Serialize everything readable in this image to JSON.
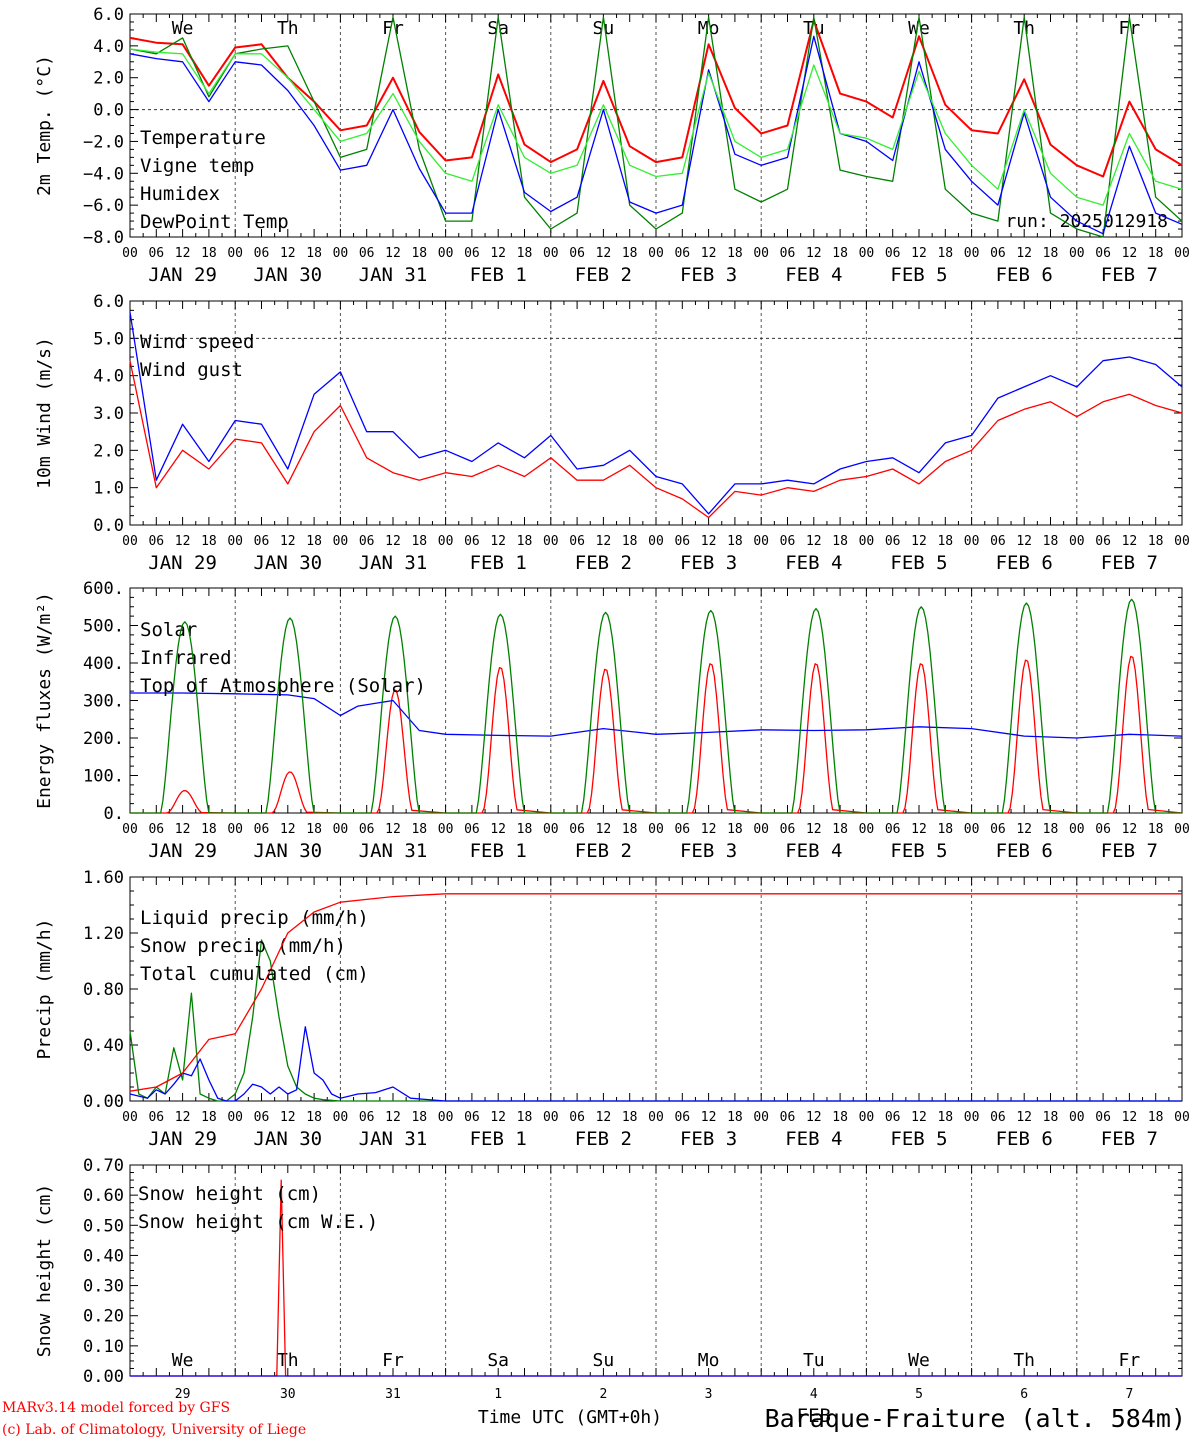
{
  "days": [
    "JAN 29",
    "JAN 30",
    "JAN 31",
    "FEB  1",
    "FEB  2",
    "FEB  3",
    "FEB  4",
    "FEB  5",
    "FEB  6",
    "FEB  7"
  ],
  "weekdays": [
    "We",
    "Th",
    "Fr",
    "Sa",
    "Su",
    "Mo",
    "Tu",
    "We",
    "Th",
    "Fr"
  ],
  "weekend_weekdays": [
    "Sa",
    "Su"
  ],
  "hour_ticks": [
    "00",
    "06",
    "12",
    "18"
  ],
  "day_numbers": [
    "29",
    "30",
    "31",
    "1",
    "2",
    "3",
    "4",
    "5",
    "6",
    "7"
  ],
  "month_label": "FEB",
  "run_label": "run: 2025012918",
  "footer": {
    "model": "MARv3.14 model forced by GFS",
    "lab": "(c) Lab. of Climatology, University of Liege",
    "xlabel": "Time UTC (GMT+0h)",
    "station": "Baraque-Fraiture (alt. 584m)"
  },
  "colors": {
    "red": "#ff0000",
    "green": "#008000",
    "blue": "#0000ff",
    "lightgreen": "#33ee33"
  },
  "chart_data": [
    {
      "type": "line",
      "ylabel": "2m Temp. (°C)",
      "ylim": [
        -8,
        6
      ],
      "yticks": [
        "6.0",
        "4.0",
        "2.0",
        "0.0",
        "−2.0",
        "−4.0",
        "−6.0",
        "−8.0"
      ],
      "zero_line": 0,
      "x_hours": [
        0,
        6,
        12,
        18,
        24,
        30,
        36,
        42,
        48,
        54,
        60,
        66,
        72,
        78,
        84,
        90,
        96,
        102,
        108,
        114,
        120,
        126,
        132,
        138,
        144,
        150,
        156,
        162,
        168,
        174,
        180,
        186,
        192,
        198,
        204,
        210,
        216,
        222,
        228,
        234,
        240
      ],
      "series": [
        {
          "name": "Temperature",
          "color": "#ff0000",
          "values": [
            4.5,
            4.2,
            4.1,
            1.5,
            3.9,
            4.1,
            2.0,
            0.5,
            -1.3,
            -1.0,
            2.0,
            -1.4,
            -3.2,
            -3.0,
            2.2,
            -2.2,
            -3.3,
            -2.5,
            1.8,
            -2.3,
            -3.3,
            -3.0,
            4.1,
            0.1,
            -1.5,
            -1.0,
            5.6,
            1.0,
            0.5,
            -0.5,
            4.6,
            0.3,
            -1.3,
            -1.5,
            1.9,
            -2.2,
            -3.5,
            -4.2,
            0.5,
            -2.5,
            -3.5
          ]
        },
        {
          "name": "Vigne temp",
          "color": "#008000",
          "values": [
            3.8,
            3.5,
            4.5,
            0.8,
            3.5,
            3.8,
            4.0,
            0.5,
            -3.0,
            -2.5,
            5.8,
            -2.5,
            -7.0,
            -7.0,
            5.8,
            -5.5,
            -7.5,
            -6.5,
            5.8,
            -6.0,
            -7.5,
            -6.5,
            5.8,
            -5.0,
            -5.8,
            -5.0,
            5.8,
            -3.8,
            -4.2,
            -4.5,
            5.8,
            -5.0,
            -6.5,
            -7.0,
            5.8,
            -6.5,
            -7.5,
            -8.0,
            5.8,
            -5.5,
            -7.0
          ]
        },
        {
          "name": "Humidex",
          "color": "#0000ff",
          "values": [
            3.5,
            3.2,
            3.0,
            0.5,
            3.0,
            2.8,
            1.2,
            -1.0,
            -3.8,
            -3.5,
            0.0,
            -3.7,
            -6.5,
            -6.5,
            0.0,
            -5.2,
            -6.4,
            -5.5,
            0.0,
            -5.8,
            -6.5,
            -6.0,
            2.5,
            -2.8,
            -3.5,
            -3.0,
            4.6,
            -1.5,
            -2.0,
            -3.2,
            3.0,
            -2.5,
            -4.5,
            -6.0,
            -0.2,
            -5.5,
            -7.0,
            -7.8,
            -2.3,
            -6.5,
            -7.2
          ]
        },
        {
          "name": "DewPoint Temp",
          "color": "#33ee33",
          "values": [
            3.8,
            3.6,
            3.5,
            1.0,
            3.5,
            3.5,
            2.0,
            0.0,
            -2.0,
            -1.5,
            1.0,
            -2.0,
            -4.0,
            -4.5,
            0.3,
            -3.0,
            -4.0,
            -3.5,
            0.3,
            -3.5,
            -4.2,
            -4.0,
            2.3,
            -2.0,
            -3.0,
            -2.5,
            2.8,
            -1.5,
            -1.8,
            -2.5,
            2.4,
            -1.5,
            -3.5,
            -5.0,
            0.0,
            -4.0,
            -5.5,
            -6.0,
            -1.5,
            -4.5,
            -5.0
          ]
        }
      ]
    },
    {
      "type": "line",
      "ylabel": "10m Wind (m/s)",
      "ylim": [
        0,
        6
      ],
      "yticks": [
        "6.0",
        "5.0",
        "4.0",
        "3.0",
        "2.0",
        "1.0",
        "0.0"
      ],
      "ref_line": 5,
      "x_hours": [
        0,
        6,
        12,
        18,
        24,
        30,
        36,
        42,
        48,
        54,
        60,
        66,
        72,
        78,
        84,
        90,
        96,
        102,
        108,
        114,
        120,
        126,
        132,
        138,
        144,
        150,
        156,
        162,
        168,
        174,
        180,
        186,
        192,
        198,
        204,
        210,
        216,
        222,
        228,
        234,
        240
      ],
      "series": [
        {
          "name": "Wind speed",
          "color": "#ff0000",
          "values": [
            4.4,
            1.0,
            2.0,
            1.5,
            2.3,
            2.2,
            1.1,
            2.5,
            3.2,
            1.8,
            1.4,
            1.2,
            1.4,
            1.3,
            1.6,
            1.3,
            1.8,
            1.2,
            1.2,
            1.6,
            1.0,
            0.7,
            0.2,
            0.9,
            0.8,
            1.0,
            0.9,
            1.2,
            1.3,
            1.5,
            1.1,
            1.7,
            2.0,
            2.8,
            3.1,
            3.3,
            2.9,
            3.3,
            3.5,
            3.2,
            3.0
          ]
        },
        {
          "name": "Wind gust",
          "color": "#0000ff",
          "values": [
            5.7,
            1.2,
            2.7,
            1.7,
            2.8,
            2.7,
            1.5,
            3.5,
            4.1,
            2.5,
            2.5,
            1.8,
            2.0,
            1.7,
            2.2,
            1.8,
            2.4,
            1.5,
            1.6,
            2.0,
            1.3,
            1.1,
            0.3,
            1.1,
            1.1,
            1.2,
            1.1,
            1.5,
            1.7,
            1.8,
            1.4,
            2.2,
            2.4,
            3.4,
            3.7,
            4.0,
            3.7,
            4.4,
            4.5,
            4.3,
            3.7
          ]
        }
      ]
    },
    {
      "type": "line",
      "ylabel": "Energy fluxes (W/m²)",
      "ylim": [
        0,
        600
      ],
      "yticks": [
        "600.",
        "500.",
        "400.",
        "300.",
        "200.",
        "100.",
        "0."
      ],
      "series": [
        {
          "name": "Solar",
          "color": "#ff0000",
          "peaks": [
            60,
            110,
            330,
            390,
            385,
            400,
            400,
            400,
            410,
            420
          ]
        },
        {
          "name": "Infrared",
          "color": "#0000ff",
          "x_hours": [
            0,
            12,
            24,
            36,
            42,
            48,
            52,
            60,
            66,
            72,
            84,
            96,
            108,
            120,
            132,
            144,
            156,
            168,
            180,
            192,
            204,
            216,
            228,
            240
          ],
          "values": [
            320,
            320,
            318,
            315,
            305,
            260,
            285,
            300,
            220,
            210,
            207,
            205,
            225,
            210,
            215,
            222,
            220,
            222,
            230,
            225,
            205,
            200,
            210,
            205
          ]
        },
        {
          "name": "Top of Atmosphere (Solar)",
          "color": "#008000",
          "peaks": [
            510,
            520,
            525,
            530,
            535,
            540,
            545,
            550,
            560,
            570
          ]
        }
      ]
    },
    {
      "type": "line",
      "ylabel": "Precip (mm/h)",
      "ylim": [
        0,
        1.6
      ],
      "yticks": [
        "1.60",
        "1.20",
        "0.80",
        "0.40",
        "0.00"
      ],
      "series": [
        {
          "name": "Liquid precip (mm/h)",
          "color": "#008000",
          "x_hours": [
            0,
            2,
            4,
            6,
            8,
            10,
            12,
            14,
            16,
            18,
            20,
            22,
            24,
            26,
            28,
            30,
            32,
            34,
            36,
            38,
            40,
            42,
            44,
            48,
            240
          ],
          "values": [
            0.5,
            0.05,
            0.02,
            0.1,
            0.05,
            0.38,
            0.15,
            0.77,
            0.05,
            0.02,
            0.0,
            0.0,
            0.05,
            0.2,
            0.6,
            1.15,
            1.0,
            0.6,
            0.25,
            0.1,
            0.05,
            0.02,
            0.01,
            0.0,
            0.0
          ]
        },
        {
          "name": "Snow precip (mm/h)",
          "color": "#0000ff",
          "x_hours": [
            0,
            4,
            6,
            8,
            10,
            12,
            14,
            16,
            18,
            20,
            22,
            24,
            26,
            28,
            30,
            32,
            34,
            36,
            38,
            40,
            42,
            44,
            46,
            48,
            52,
            56,
            60,
            64,
            68,
            72,
            240
          ],
          "values": [
            0.05,
            0.02,
            0.08,
            0.05,
            0.12,
            0.2,
            0.18,
            0.3,
            0.15,
            0.02,
            0.0,
            0.0,
            0.05,
            0.12,
            0.1,
            0.05,
            0.1,
            0.05,
            0.08,
            0.53,
            0.2,
            0.15,
            0.05,
            0.02,
            0.05,
            0.06,
            0.1,
            0.02,
            0.01,
            0.0,
            0.0
          ]
        },
        {
          "name": "Total cumulated (cm)",
          "color": "#ff0000",
          "x_hours": [
            0,
            6,
            12,
            18,
            24,
            30,
            36,
            42,
            48,
            54,
            60,
            66,
            72,
            84,
            96,
            240
          ],
          "values": [
            0.07,
            0.1,
            0.2,
            0.44,
            0.48,
            0.8,
            1.2,
            1.35,
            1.42,
            1.44,
            1.46,
            1.47,
            1.48,
            1.48,
            1.48,
            1.48
          ]
        }
      ]
    },
    {
      "type": "line",
      "ylabel": "Snow height (cm)",
      "ylim": [
        0,
        0.7
      ],
      "yticks": [
        "0.70",
        "0.60",
        "0.50",
        "0.40",
        "0.30",
        "0.20",
        "0.10",
        "0.00"
      ],
      "series": [
        {
          "name": "Snow height (cm)",
          "color": "#ff0000",
          "x_hours": [
            0,
            33.5,
            34.5,
            35.5,
            240
          ],
          "values": [
            0,
            0,
            0.65,
            0,
            0
          ]
        },
        {
          "name": "Snow height (cm W.E.)",
          "color": "#0000ff",
          "x_hours": [
            0,
            240
          ],
          "values": [
            0,
            0
          ]
        }
      ]
    }
  ]
}
